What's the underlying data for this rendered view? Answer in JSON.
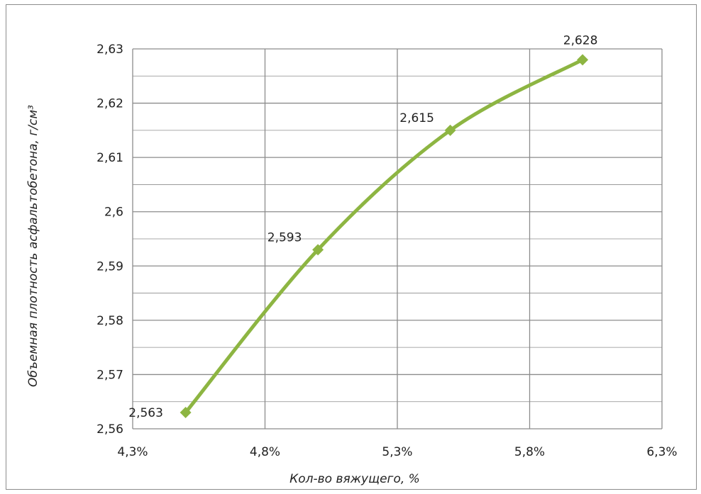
{
  "chart_data": {
    "type": "line",
    "title": "",
    "xlabel": "Кол-во вяжущего,  %",
    "ylabel": "Объемная плотность асфальтобетона, г/см³",
    "x": [
      4.5,
      5.0,
      5.5,
      6.0
    ],
    "y": [
      2.563,
      2.593,
      2.615,
      2.628
    ],
    "data_labels": [
      "2,563",
      "2,593",
      "2,615",
      "2,628"
    ],
    "xlim": [
      4.3,
      6.3
    ],
    "ylim": [
      2.56,
      2.63
    ],
    "x_tick_values": [
      4.3,
      4.8,
      5.3,
      5.8,
      6.3
    ],
    "x_tick_labels": [
      "4,3%",
      "4,8%",
      "5,3%",
      "5,8%",
      "6,3%"
    ],
    "y_tick_values": [
      2.56,
      2.57,
      2.58,
      2.59,
      2.6,
      2.61,
      2.62,
      2.63
    ],
    "y_tick_labels": [
      "2,56",
      "2,57",
      "2,58",
      "2,59",
      "2,6",
      "2,61",
      "2,62",
      "2,63"
    ],
    "grid": true,
    "smooth": true,
    "marker": "diamond",
    "series_color": "#8db542",
    "grid_color": "#8c8c8c",
    "legend": "none"
  }
}
